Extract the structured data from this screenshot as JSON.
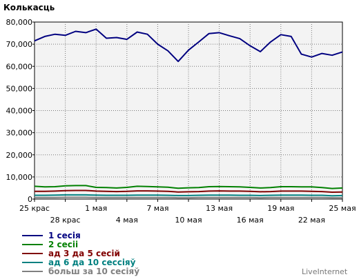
{
  "chart_data": {
    "type": "line",
    "title": "Колькасць",
    "grid": true,
    "ylim": [
      0,
      80000
    ],
    "y_ticks": [
      "0",
      "10,000",
      "20,000",
      "30,000",
      "40,000",
      "50,000",
      "60,000",
      "70,000",
      "80,000"
    ],
    "x_ticks_top": [
      "25 крас",
      "1 мая",
      "7 мая",
      "13 мая",
      "19 мая",
      "25 мая"
    ],
    "x_ticks_bottom": [
      "28 крас",
      "4 мая",
      "10 мая",
      "16 мая",
      "22 мая"
    ],
    "series": [
      {
        "name": "1 сесія",
        "color": "#000080",
        "values": [
          71500,
          73500,
          74500,
          74000,
          75800,
          75200,
          76800,
          72700,
          73000,
          72200,
          75500,
          74500,
          70000,
          67000,
          62200,
          67300,
          71000,
          74800,
          75200,
          73800,
          72500,
          69300,
          66600,
          71000,
          74300,
          73500,
          65500,
          64200,
          65800,
          65000,
          66500
        ]
      },
      {
        "name": "2 сесіі",
        "color": "#008000",
        "values": [
          5800,
          5500,
          5600,
          6000,
          6100,
          6100,
          5300,
          5200,
          5000,
          5300,
          5800,
          5700,
          5500,
          5400,
          4900,
          5100,
          5200,
          5600,
          5700,
          5600,
          5500,
          5300,
          5000,
          5200,
          5600,
          5600,
          5500,
          5500,
          5200,
          4800,
          5000
        ]
      },
      {
        "name": "ад 3 да 5 сесій",
        "color": "#800000",
        "values": [
          3500,
          3500,
          3600,
          3800,
          3900,
          3900,
          3600,
          3500,
          3400,
          3500,
          3700,
          3700,
          3600,
          3500,
          3200,
          3300,
          3400,
          3600,
          3700,
          3600,
          3600,
          3500,
          3300,
          3400,
          3600,
          3600,
          3600,
          3500,
          3400,
          3100,
          3200
        ]
      },
      {
        "name": "ад 6 да 10 сессіяў",
        "color": "#008080",
        "values": [
          1700,
          1700,
          1800,
          1900,
          1900,
          1900,
          1800,
          1700,
          1700,
          1700,
          1800,
          1800,
          1800,
          1700,
          1600,
          1600,
          1700,
          1800,
          1800,
          1800,
          1700,
          1700,
          1600,
          1700,
          1800,
          1800,
          1800,
          1700,
          1700,
          1500,
          1600
        ]
      },
      {
        "name": "больш за 10 сесіяў",
        "color": "#808080",
        "values": [
          700,
          700,
          700,
          800,
          800,
          800,
          700,
          700,
          700,
          700,
          700,
          700,
          700,
          700,
          600,
          600,
          700,
          700,
          700,
          700,
          700,
          700,
          600,
          700,
          700,
          700,
          700,
          700,
          700,
          600,
          600
        ]
      }
    ]
  },
  "branding": "LiveInternet"
}
